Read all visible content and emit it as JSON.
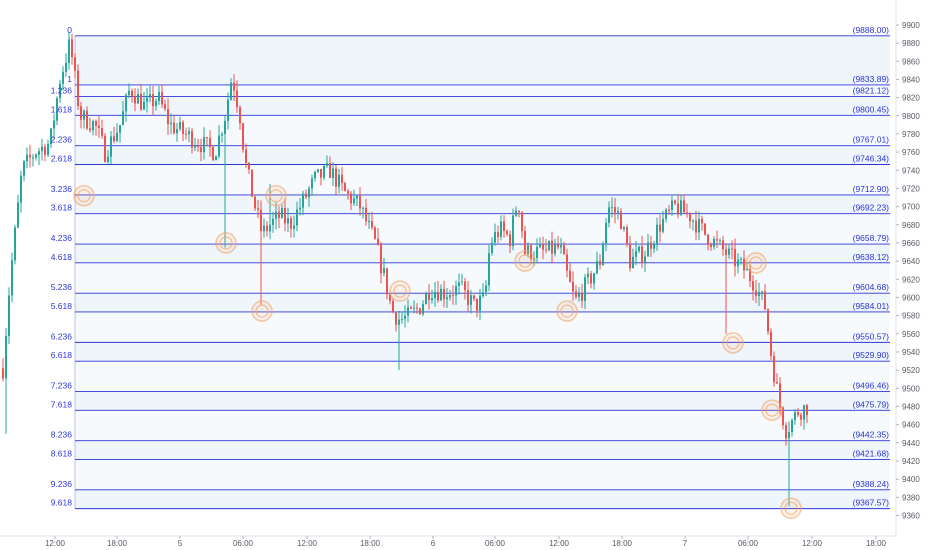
{
  "chart_data": {
    "type": "candlestick",
    "title": "",
    "xlabel": "",
    "ylabel": "",
    "ylim": [
      9350,
      9908
    ],
    "y_ticks": [
      9360,
      9380,
      9400,
      9420,
      9440,
      9460,
      9480,
      9500,
      9520,
      9540,
      9560,
      9580,
      9600,
      9620,
      9640,
      9660,
      9680,
      9700,
      9720,
      9740,
      9760,
      9780,
      9800,
      9820,
      9840,
      9860,
      9880,
      9900
    ],
    "x_ticks": [
      "12:00",
      "18:00",
      "5",
      "06:00",
      "12:00",
      "18:00",
      "6",
      "06:00",
      "12:00",
      "18:00",
      "7",
      "06:00",
      "12:00",
      "18:00"
    ],
    "fib_levels": [
      {
        "ratio": "0",
        "price": 9888.0,
        "label": "(9888.00)"
      },
      {
        "ratio": "1",
        "price": 9833.89,
        "label": "(9833.89)"
      },
      {
        "ratio": "1.236",
        "price": 9821.12,
        "label": "(9821.12)"
      },
      {
        "ratio": "1.618",
        "price": 9800.45,
        "label": "(9800.45)"
      },
      {
        "ratio": "2.236",
        "price": 9767.01,
        "label": "(9767.01)"
      },
      {
        "ratio": "2.618",
        "price": 9746.34,
        "label": "(9746.34)"
      },
      {
        "ratio": "3.236",
        "price": 9712.9,
        "label": "(9712.90)"
      },
      {
        "ratio": "3.618",
        "price": 9692.23,
        "label": "(9692.23)"
      },
      {
        "ratio": "4.236",
        "price": 9658.79,
        "label": "(9658.79)"
      },
      {
        "ratio": "4.618",
        "price": 9638.12,
        "label": "(9638.12)"
      },
      {
        "ratio": "5.236",
        "price": 9604.68,
        "label": "(9604.68)"
      },
      {
        "ratio": "5.618",
        "price": 9584.01,
        "label": "(9584.01)"
      },
      {
        "ratio": "6.236",
        "price": 9550.57,
        "label": "(9550.57)"
      },
      {
        "ratio": "6.618",
        "price": 9529.9,
        "label": "(9529.90)"
      },
      {
        "ratio": "7.236",
        "price": 9496.46,
        "label": "(9496.46)"
      },
      {
        "ratio": "7.618",
        "price": 9475.79,
        "label": "(9475.79)"
      },
      {
        "ratio": "8.236",
        "price": 9442.35,
        "label": "(9442.35)"
      },
      {
        "ratio": "8.618",
        "price": 9421.68,
        "label": "(9421.68)"
      },
      {
        "ratio": "9.236",
        "price": 9388.24,
        "label": "(9388.24)"
      },
      {
        "ratio": "9.618",
        "price": 9367.57,
        "label": "(9367.57)"
      }
    ],
    "highlight_prices": [
      9712,
      9660,
      9712,
      9585,
      9607,
      9640,
      9585,
      9638,
      9550,
      9476,
      9368
    ],
    "colors": {
      "fib_line": "#2b34d8",
      "fib_fill": "#eef5fb",
      "bull": "#26a69a",
      "bear": "#ef5350",
      "circle": "#f5a162",
      "axis_text": "#555a63"
    }
  }
}
